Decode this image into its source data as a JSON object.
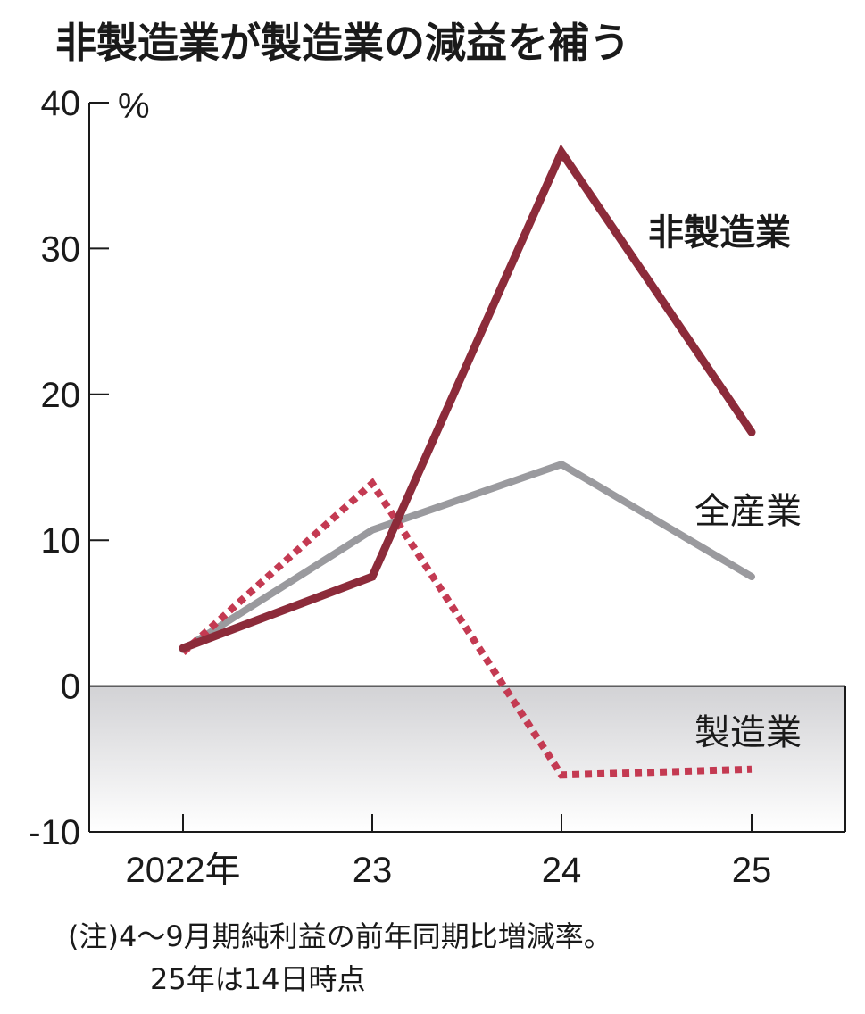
{
  "chart_data": {
    "type": "line",
    "title": "非製造業が製造業の減益を補う",
    "ylabel": "%",
    "xlabel": "",
    "categories": [
      "2022年",
      "23",
      "24",
      "25"
    ],
    "ylim": [
      -10,
      40
    ],
    "yticks": [
      40,
      30,
      20,
      10,
      0,
      -10
    ],
    "ytick_labels": [
      "40",
      "30",
      "20",
      "10",
      "0",
      "-10"
    ],
    "grid": false,
    "negative_region_shaded": true,
    "series": [
      {
        "name": "全産業",
        "values": [
          2.5,
          10.7,
          15.2,
          7.5
        ],
        "color": "#9a9a9e",
        "style": "solid",
        "label_bold": false
      },
      {
        "name": "製造業",
        "values": [
          2.3,
          13.9,
          -6.1,
          -5.7
        ],
        "color": "#c43a52",
        "style": "dotted",
        "label_bold": false
      },
      {
        "name": "非製造業",
        "values": [
          2.6,
          7.5,
          36.6,
          17.4
        ],
        "color": "#8c2b3a",
        "style": "solid",
        "label_bold": true
      }
    ],
    "note_lines": [
      "(注)4〜9月期純利益の前年同期比増減率。",
      "25年は14日時点"
    ]
  }
}
